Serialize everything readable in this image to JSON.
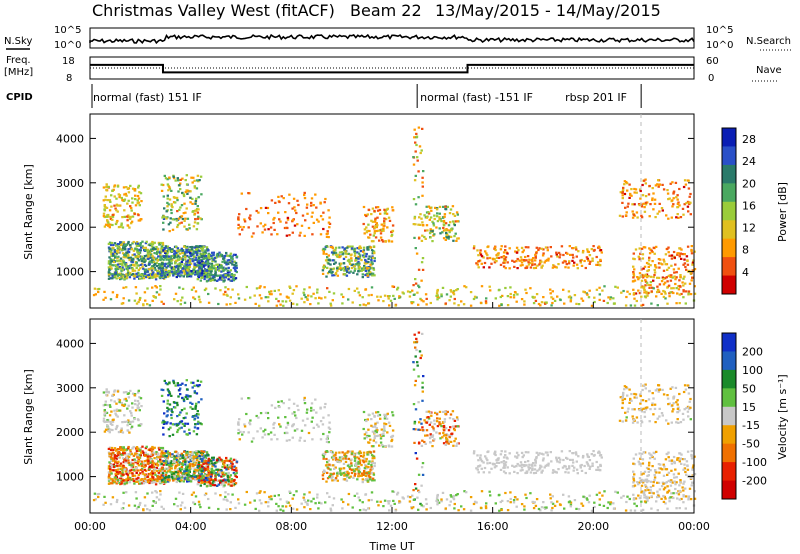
{
  "title": {
    "station": "Christmas Valley West (fitACF)",
    "beam": "Beam 22",
    "dates": "13/May/2015 - 14/May/2015"
  },
  "labels": {
    "nsky": "N.Sky",
    "nsearch": "N.Search",
    "freq_line1": "Freq.",
    "freq_line2": "[MHz]",
    "nave": "Nave",
    "cpid": "CPID",
    "slant_range": "Slant Range [km]",
    "time_axis": "Time UT",
    "power_axis": "Power [dB]",
    "velocity_axis": "Velocity [m s⁻¹]"
  },
  "cpid_segments": [
    {
      "label": "normal (fast) 151 IF",
      "start_h": 0.0,
      "end_h": 13.0
    },
    {
      "label": "normal (fast) -151 IF",
      "start_h": 13.0,
      "end_h": 21.9
    },
    {
      "label": "rbsp 201 IF",
      "start_h": 21.9,
      "end_h": 24.0
    }
  ],
  "noise_panel": {
    "left_ticks": [
      "10^5",
      "10^0"
    ],
    "right_ticks": [
      "10^5",
      "10^0"
    ]
  },
  "freq_panel": {
    "left_ticks": [
      18,
      8
    ],
    "right_ticks": [
      60,
      0
    ],
    "freq_steps": [
      {
        "start_h": 0.0,
        "end_h": 2.9,
        "mhz": 14.4
      },
      {
        "start_h": 2.9,
        "end_h": 15.0,
        "mhz": 11.0
      },
      {
        "start_h": 15.0,
        "end_h": 24.0,
        "mhz": 14.4
      }
    ]
  },
  "chart_data": [
    {
      "type": "heatmap",
      "quantity": "Power",
      "xlabel": "Time UT",
      "ylabel": "Slant Range [km]",
      "x_ticks": [
        "00:00",
        "04:00",
        "08:00",
        "12:00",
        "16:00",
        "20:00",
        "00:00"
      ],
      "xlim_hours": [
        0,
        24
      ],
      "y_ticks": [
        1000,
        2000,
        3000,
        4000
      ],
      "ylim_km": [
        180,
        4550
      ],
      "colorbar_label": "Power [dB]",
      "colorbar_ticks": [
        4,
        8,
        12,
        16,
        20,
        24,
        28
      ],
      "colorbar_range": [
        0,
        30
      ],
      "colors": [
        "#0a1eb4",
        "#2a50c8",
        "#2a7a6a",
        "#4aa860",
        "#9acc3a",
        "#e0c020",
        "#ff9a00",
        "#f05010",
        "#d00000"
      ]
    },
    {
      "type": "heatmap",
      "quantity": "Velocity",
      "xlabel": "Time UT",
      "ylabel": "Slant Range [km]",
      "x_ticks": [
        "00:00",
        "04:00",
        "08:00",
        "12:00",
        "16:00",
        "20:00",
        "00:00"
      ],
      "xlim_hours": [
        0,
        24
      ],
      "y_ticks": [
        1000,
        2000,
        3000,
        4000
      ],
      "ylim_km": [
        180,
        4550
      ],
      "colorbar_label": "Velocity [m s⁻¹]",
      "colorbar_ticks": [
        200,
        100,
        50,
        15,
        -15,
        -50,
        -100,
        -200
      ],
      "colorbar_range": [
        -250,
        250
      ],
      "colors": [
        "#1030c8",
        "#2060c0",
        "#1a8a2a",
        "#60c040",
        "#c8c8c8",
        "#f0a000",
        "#f07000",
        "#e82000",
        "#d00000"
      ]
    }
  ]
}
